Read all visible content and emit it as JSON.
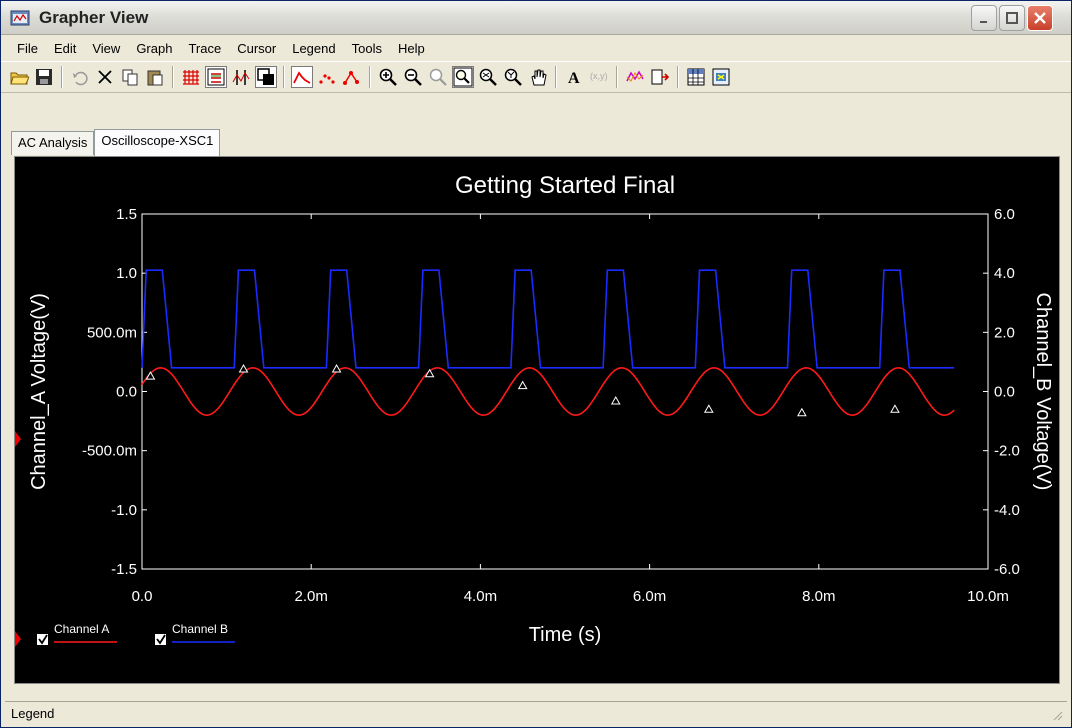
{
  "window": {
    "title": "Grapher View"
  },
  "menu": [
    "File",
    "Edit",
    "View",
    "Graph",
    "Trace",
    "Cursor",
    "Legend",
    "Tools",
    "Help"
  ],
  "toolbar": {
    "groups": [
      [
        "open-icon",
        "save-icon"
      ],
      [
        "undo-icon",
        "cut-icon",
        "copy-icon",
        "paste-icon"
      ],
      [
        "grid-icon",
        "legend-toggle-icon",
        "cursors-icon",
        "overlay-icon"
      ],
      [
        "line-style-icon",
        "dot-style-icon",
        "dot-line-style-icon"
      ],
      [
        "zoom-in-icon",
        "zoom-out-icon",
        "zoom-reset-icon",
        "zoom-area-icon",
        "zoom-x-icon",
        "zoom-y-icon",
        "pan-hand-icon"
      ],
      [
        "text-icon",
        "label-icon"
      ],
      [
        "trace-props-icon",
        "export-icon"
      ],
      [
        "export-excel-icon",
        "export-mathcad-icon"
      ]
    ]
  },
  "tabs": [
    {
      "label": "AC Analysis",
      "active": false
    },
    {
      "label": "Oscilloscope-XSC1",
      "active": true
    }
  ],
  "status": {
    "text": "Legend"
  },
  "colors": {
    "channel_a": "#ff1a1a",
    "channel_b": "#1a2bff",
    "plot_bg": "#000000",
    "axis": "#ffffff"
  },
  "chart_data": {
    "type": "line",
    "title": "Getting Started Final",
    "xlabel": "Time (s)",
    "ylabel_left": "Channel_A Voltage(V)",
    "ylabel_right": "Channel_B Voltage(V)",
    "xlim": [
      0,
      0.01
    ],
    "ylim_left": [
      -1.5,
      1.5
    ],
    "ylim_right": [
      -6.0,
      6.0
    ],
    "x_ticks": [
      "0.0",
      "2.0m",
      "4.0m",
      "6.0m",
      "8.0m",
      "10.0m"
    ],
    "y_ticks_left": [
      "1.5",
      "1.0",
      "500.0m",
      "0.0",
      "-500.0m",
      "-1.0",
      "-1.5"
    ],
    "y_ticks_right": [
      "6.0",
      "4.0",
      "2.0",
      "0.0",
      "-2.0",
      "-4.0",
      "-6.0"
    ],
    "grid": false,
    "legend_position": "bottom-left",
    "series": [
      {
        "name": "Channel A",
        "axis": "left",
        "color": "#ff1a1a",
        "x": [
          0.0,
          0.00027,
          0.00055,
          0.00082,
          0.00109,
          0.00137,
          0.00164,
          0.00191,
          0.00219,
          0.00246,
          0.00273,
          0.00301,
          0.00328,
          0.00355,
          0.00383,
          0.0041,
          0.00437,
          0.00465,
          0.00492,
          0.00519,
          0.00547,
          0.00574,
          0.00601,
          0.00629,
          0.00656,
          0.00683,
          0.00711,
          0.00738,
          0.00765,
          0.00793,
          0.0082,
          0.00847,
          0.00875,
          0.00902,
          0.00929,
          0.00957
        ],
        "y": [
          0.05,
          0.2,
          0.0,
          -0.2,
          0.05,
          0.2,
          0.0,
          -0.2,
          0.05,
          0.2,
          0.0,
          -0.2,
          0.05,
          0.2,
          0.0,
          -0.2,
          0.05,
          0.2,
          0.0,
          -0.2,
          0.05,
          0.2,
          0.0,
          -0.2,
          0.05,
          0.2,
          0.0,
          -0.2,
          0.05,
          0.2,
          0.0,
          -0.2,
          0.05,
          0.2,
          0.0,
          0.05
        ],
        "markers_x": [
          0.0001,
          0.0012,
          0.0023,
          0.0034,
          0.0045,
          0.0056,
          0.0067,
          0.0078,
          0.0089
        ],
        "markers_y": [
          0.13,
          0.19,
          0.19,
          0.15,
          0.05,
          -0.08,
          -0.15,
          -0.18,
          -0.15
        ]
      },
      {
        "name": "Channel B",
        "axis": "right",
        "color": "#1a2bff",
        "period": 0.00109,
        "high": 4.1,
        "low": 0.8,
        "x_end": 0.0096
      }
    ]
  }
}
